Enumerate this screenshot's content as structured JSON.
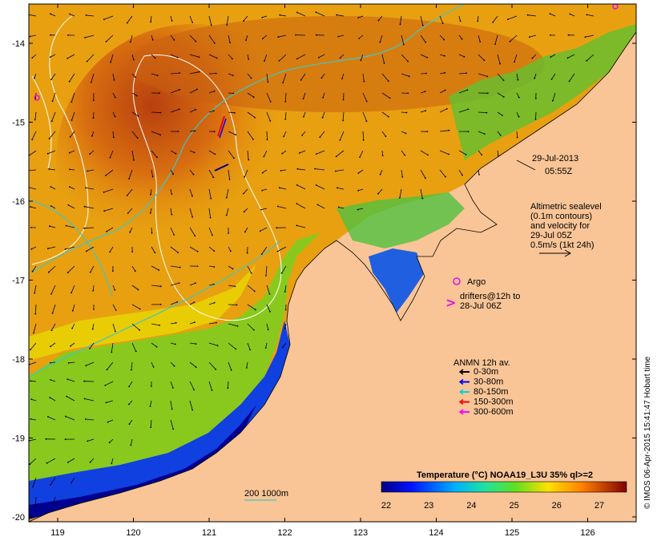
{
  "map": {
    "date_line1": "29-Jul-2013",
    "date_line2": "05:55Z",
    "altimetry_lines": [
      "Altimetric sealevel",
      "(0.1m contours)",
      "and velocity for",
      "29-Jul 05Z",
      "0.5m/s (1kt 24h)"
    ],
    "argo_label": "Argo",
    "drifter_lines": [
      "drifters@12h to",
      "28-Jul 06Z"
    ],
    "anmn_title": "ANMN 12h av.",
    "anmn_items": [
      {
        "label": "0-30m",
        "color": "#000000"
      },
      {
        "label": "30-80m",
        "color": "#0000ff"
      },
      {
        "label": "80-150m",
        "color": "#00d5d5"
      },
      {
        "label": "150-300m",
        "color": "#ff0000"
      },
      {
        "label": "300-600m",
        "color": "#ff00ff"
      }
    ],
    "isobath_label": "200  1000m",
    "colorbar_title": "Temperature (°C) NOAA19_L3U 35% ql>=2",
    "colorbar_ticks": [
      "22",
      "23",
      "24",
      "25",
      "26",
      "27"
    ],
    "credit": "© IMOS 06-Apr-2015 15:41:47 Hobart time",
    "lon_ticks": [
      "119",
      "120",
      "121",
      "122",
      "123",
      "124",
      "125",
      "126"
    ],
    "lat_ticks": [
      "-14",
      "-15",
      "-16",
      "-17",
      "-18",
      "-19",
      "-20"
    ],
    "land_color": "#f9c597",
    "argo_color": "#e010e0",
    "isobath_color": "#3fc6c6"
  }
}
